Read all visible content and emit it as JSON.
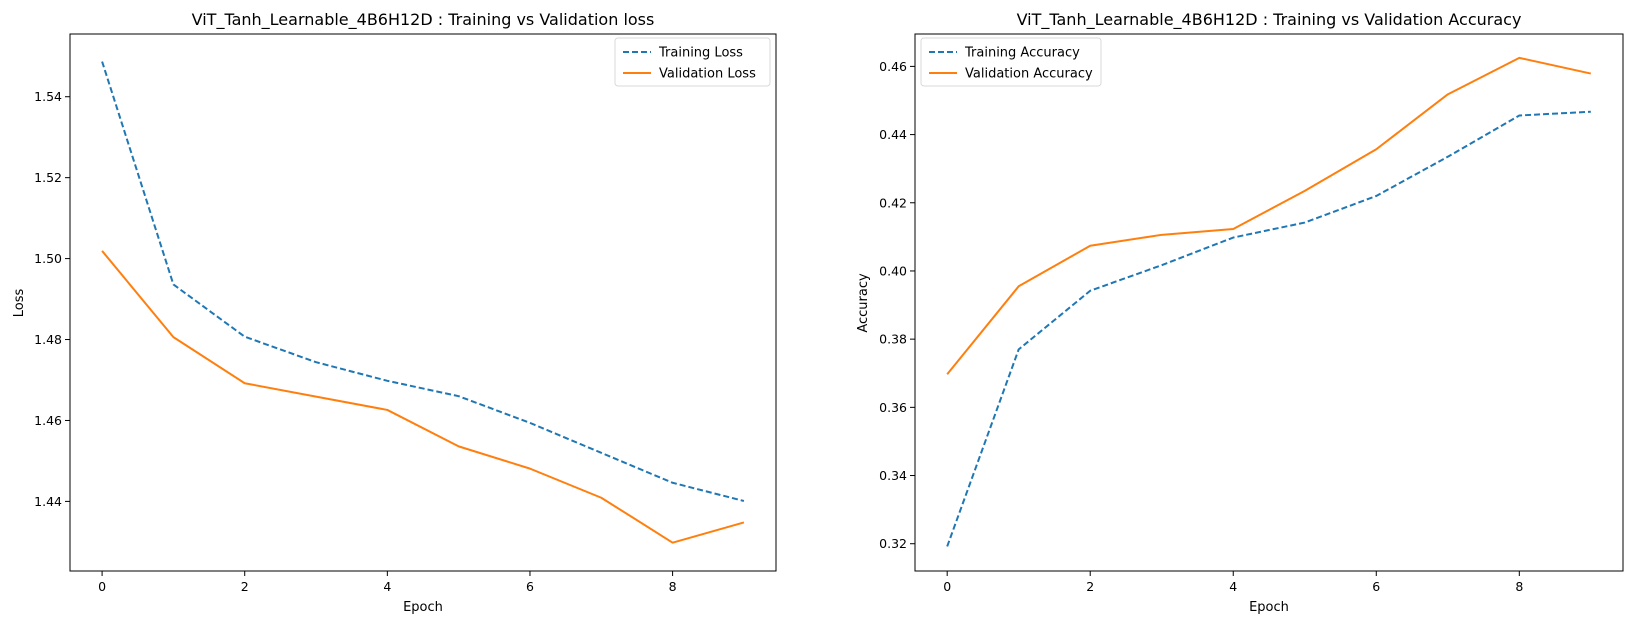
{
  "colors": {
    "training": "#1f77b4",
    "validation": "#ff7f0e",
    "axes": "#000000",
    "legend_border": "#d9d9d9"
  },
  "chart_data": [
    {
      "type": "line",
      "title": "ViT_Tanh_Learnable_4B6H12D : Training vs Validation loss",
      "xlabel": "Epoch",
      "ylabel": "Loss",
      "xlim": [
        -0.45,
        9.45
      ],
      "ylim": [
        1.4228,
        1.5555
      ],
      "xticks": [
        0,
        2,
        4,
        6,
        8
      ],
      "xtick_labels": [
        "0",
        "2",
        "4",
        "6",
        "8"
      ],
      "yticks": [
        1.44,
        1.46,
        1.48,
        1.5,
        1.52,
        1.54
      ],
      "ytick_labels": [
        "1.44",
        "1.46",
        "1.48",
        "1.50",
        "1.52",
        "1.54"
      ],
      "grid": false,
      "legend_position": "upper right",
      "x": [
        0,
        1,
        2,
        3,
        4,
        5,
        6,
        7,
        8,
        9
      ],
      "series": [
        {
          "name": "Training Loss",
          "style": "dashed",
          "color": "#1f77b4",
          "values": [
            1.5487,
            1.4936,
            1.4807,
            1.4744,
            1.4698,
            1.466,
            1.4594,
            1.452,
            1.4446,
            1.4401
          ]
        },
        {
          "name": "Validation Loss",
          "style": "solid",
          "color": "#ff7f0e",
          "values": [
            1.5019,
            1.4806,
            1.4692,
            1.4659,
            1.4626,
            1.4536,
            1.4481,
            1.4409,
            1.4298,
            1.4348
          ]
        }
      ]
    },
    {
      "type": "line",
      "title": "ViT_Tanh_Learnable_4B6H12D : Training vs Validation Accuracy",
      "xlabel": "Epoch",
      "ylabel": "Accuracy",
      "xlim": [
        -0.45,
        9.45
      ],
      "ylim": [
        0.312,
        0.4695
      ],
      "xticks": [
        0,
        2,
        4,
        6,
        8
      ],
      "xtick_labels": [
        "0",
        "2",
        "4",
        "6",
        "8"
      ],
      "yticks": [
        0.32,
        0.34,
        0.36,
        0.38,
        0.4,
        0.42,
        0.44,
        0.46
      ],
      "ytick_labels": [
        "0.32",
        "0.34",
        "0.36",
        "0.38",
        "0.40",
        "0.42",
        "0.44",
        "0.46"
      ],
      "grid": false,
      "legend_position": "upper left",
      "x": [
        0,
        1,
        2,
        3,
        4,
        5,
        6,
        7,
        8,
        9
      ],
      "series": [
        {
          "name": "Training Accuracy",
          "style": "dashed",
          "color": "#1f77b4",
          "values": [
            0.3192,
            0.377,
            0.3942,
            0.4017,
            0.4098,
            0.4142,
            0.422,
            0.4335,
            0.4456,
            0.4467
          ]
        },
        {
          "name": "Validation Accuracy",
          "style": "solid",
          "color": "#ff7f0e",
          "values": [
            0.3697,
            0.3955,
            0.4074,
            0.4106,
            0.4123,
            0.4235,
            0.4357,
            0.4518,
            0.4625,
            0.4579
          ]
        }
      ]
    }
  ]
}
